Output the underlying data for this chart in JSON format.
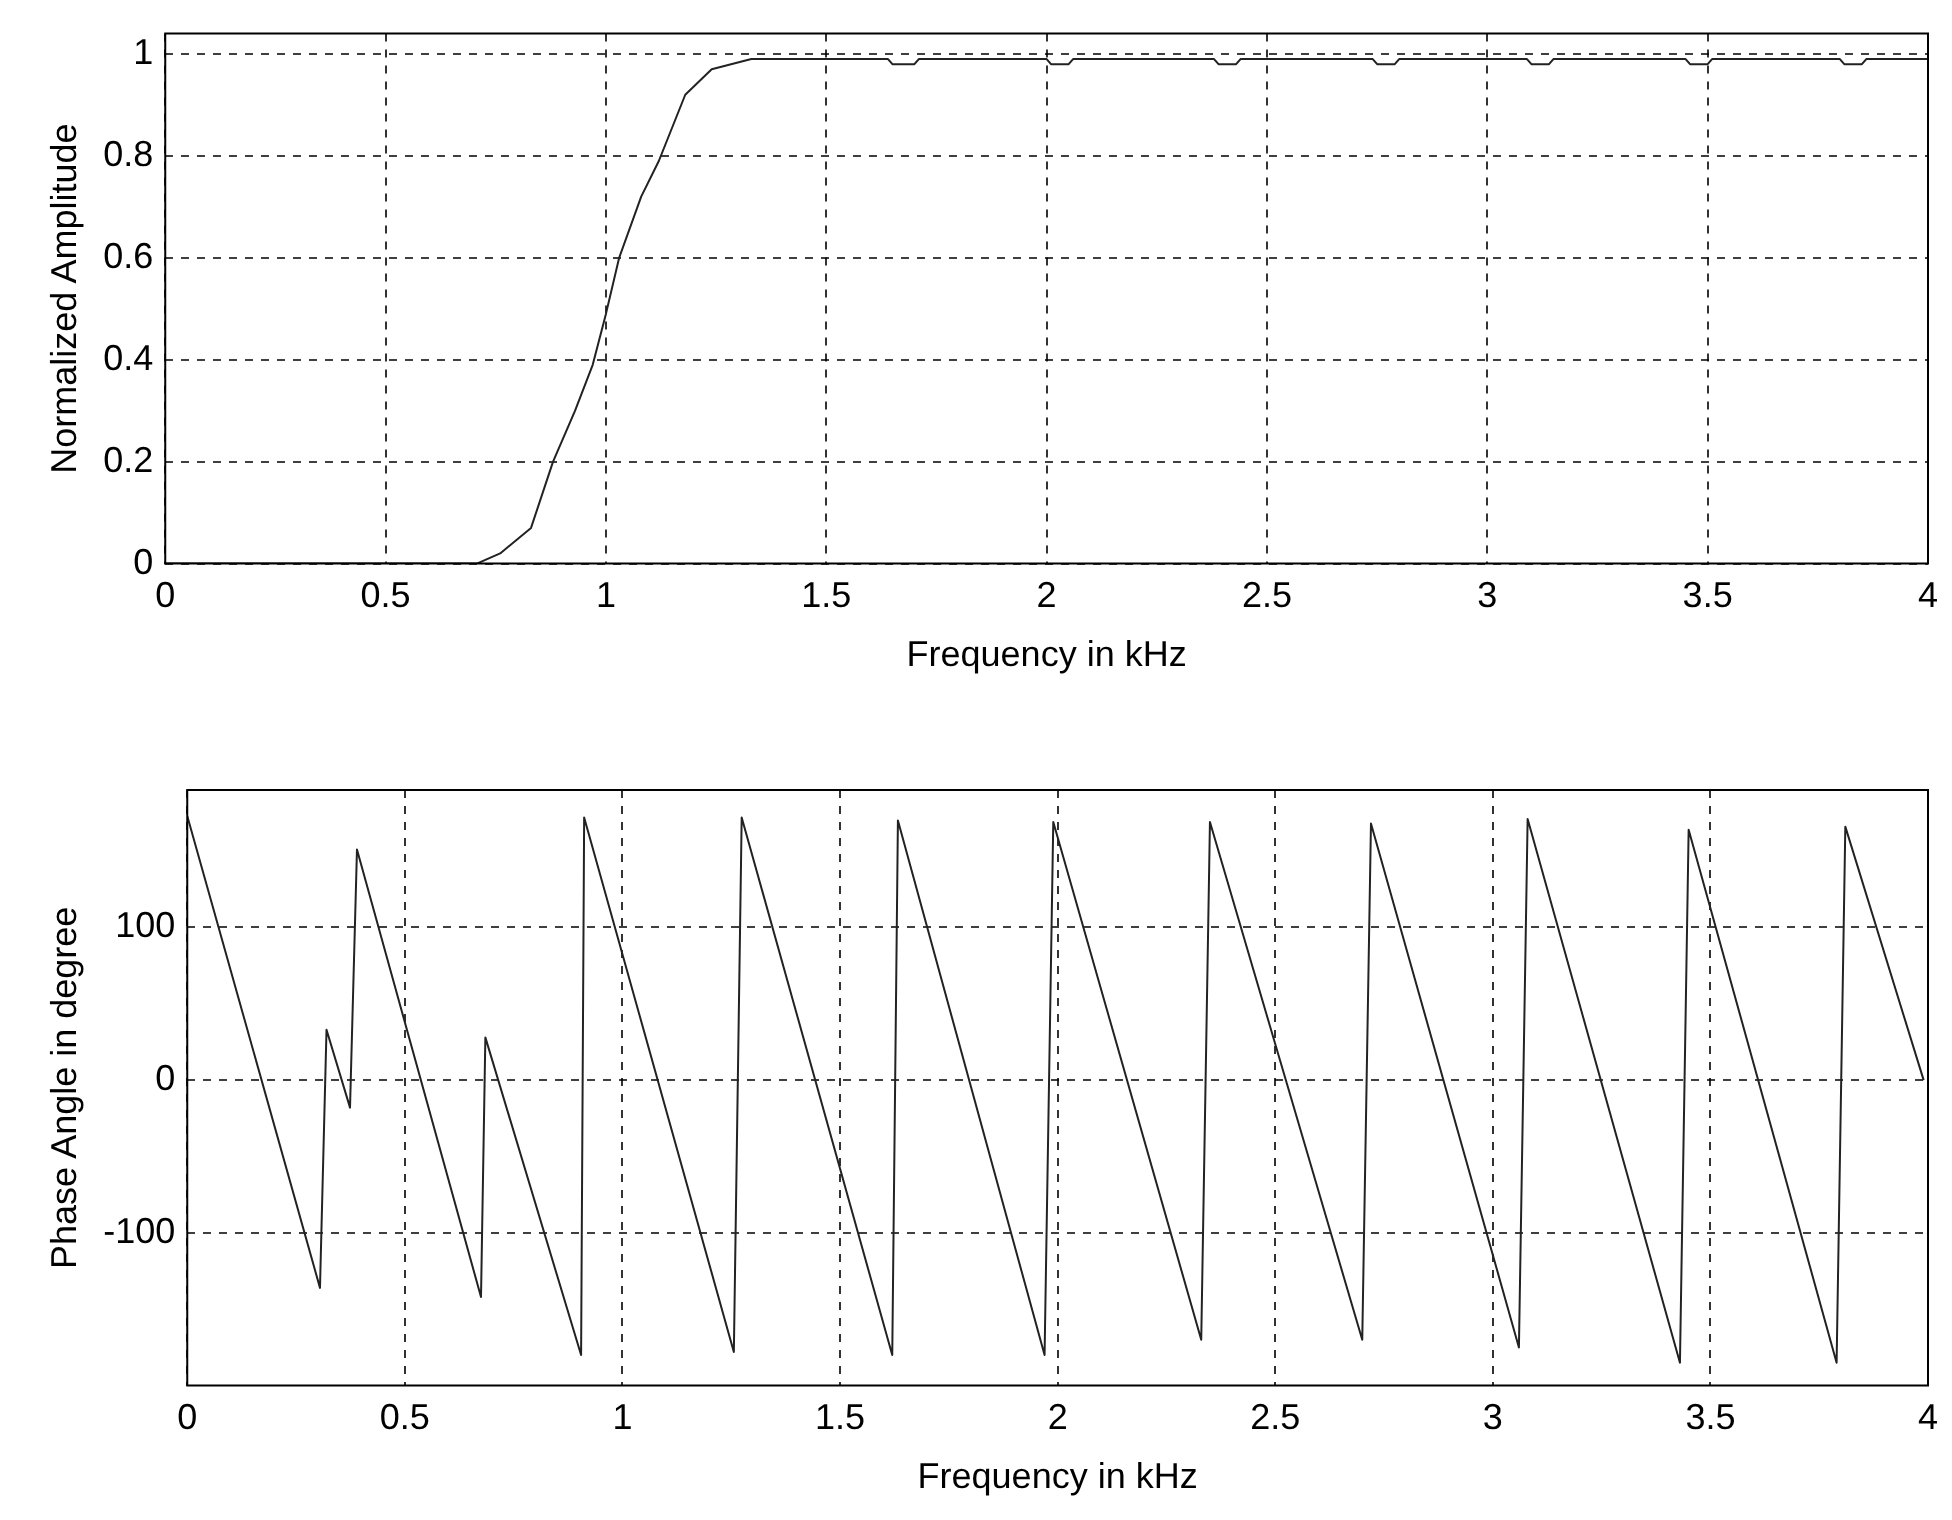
{
  "chart_data": [
    {
      "type": "line",
      "xlabel": "Frequency in kHz",
      "ylabel": "Normalized Amplitude",
      "color": "#222222",
      "grid": true,
      "x": [
        0,
        0.3,
        0.6,
        0.707,
        0.76,
        0.83,
        0.88,
        0.93,
        0.97,
        1.0,
        1.03,
        1.08,
        1.12,
        1.18,
        1.24,
        1.33,
        1.5,
        1.64,
        1.65,
        1.7,
        1.71,
        2.0,
        2.01,
        2.05,
        2.06,
        2.38,
        2.39,
        2.43,
        2.44,
        2.74,
        2.75,
        2.79,
        2.8,
        3.09,
        3.1,
        3.14,
        3.15,
        3.45,
        3.46,
        3.5,
        3.51,
        3.8,
        3.81,
        3.85,
        3.86,
        4.0
      ],
      "values": [
        0,
        0,
        0,
        0,
        0.02,
        0.07,
        0.2,
        0.3,
        0.39,
        0.49,
        0.6,
        0.72,
        0.79,
        0.92,
        0.97,
        0.99,
        0.99,
        0.99,
        0.98,
        0.98,
        0.99,
        0.99,
        0.98,
        0.98,
        0.99,
        0.99,
        0.98,
        0.98,
        0.99,
        0.99,
        0.98,
        0.98,
        0.99,
        0.99,
        0.98,
        0.98,
        0.99,
        0.99,
        0.98,
        0.98,
        0.99,
        0.99,
        0.98,
        0.98,
        0.99,
        0.99
      ],
      "xlim": [
        0,
        4
      ],
      "xticks": [
        0,
        0.5,
        1,
        1.5,
        2,
        2.5,
        3,
        3.5,
        4
      ],
      "ylim": [
        0,
        1.04
      ],
      "yticks": [
        0,
        0.2,
        0.4,
        0.6,
        0.8,
        1
      ]
    },
    {
      "type": "line",
      "xlabel": "Frequency in kHz",
      "ylabel": "Phase Angle in degree",
      "color": "#222222",
      "grid": true,
      "x": [
        0,
        0.305,
        0.32,
        0.374,
        0.39,
        0.675,
        0.685,
        0.905,
        0.912,
        1.256,
        1.274,
        1.62,
        1.633,
        1.97,
        1.99,
        2.33,
        2.35,
        2.7,
        2.72,
        3.06,
        3.08,
        3.43,
        3.45,
        3.79,
        3.81,
        3.99
      ],
      "values": [
        173,
        -136,
        33,
        -18,
        151,
        -142,
        28,
        -180,
        172,
        -178,
        172,
        -180,
        170,
        -180,
        169,
        -170,
        169,
        -170,
        168,
        -175,
        171,
        -185,
        164,
        -185,
        166,
        0
      ],
      "xlim": [
        0,
        4
      ],
      "xticks": [
        0,
        0.5,
        1,
        1.5,
        2,
        2.5,
        3,
        3.5,
        4
      ],
      "ylim": [
        -200,
        190
      ],
      "yticks": [
        -100,
        0,
        100
      ]
    }
  ]
}
